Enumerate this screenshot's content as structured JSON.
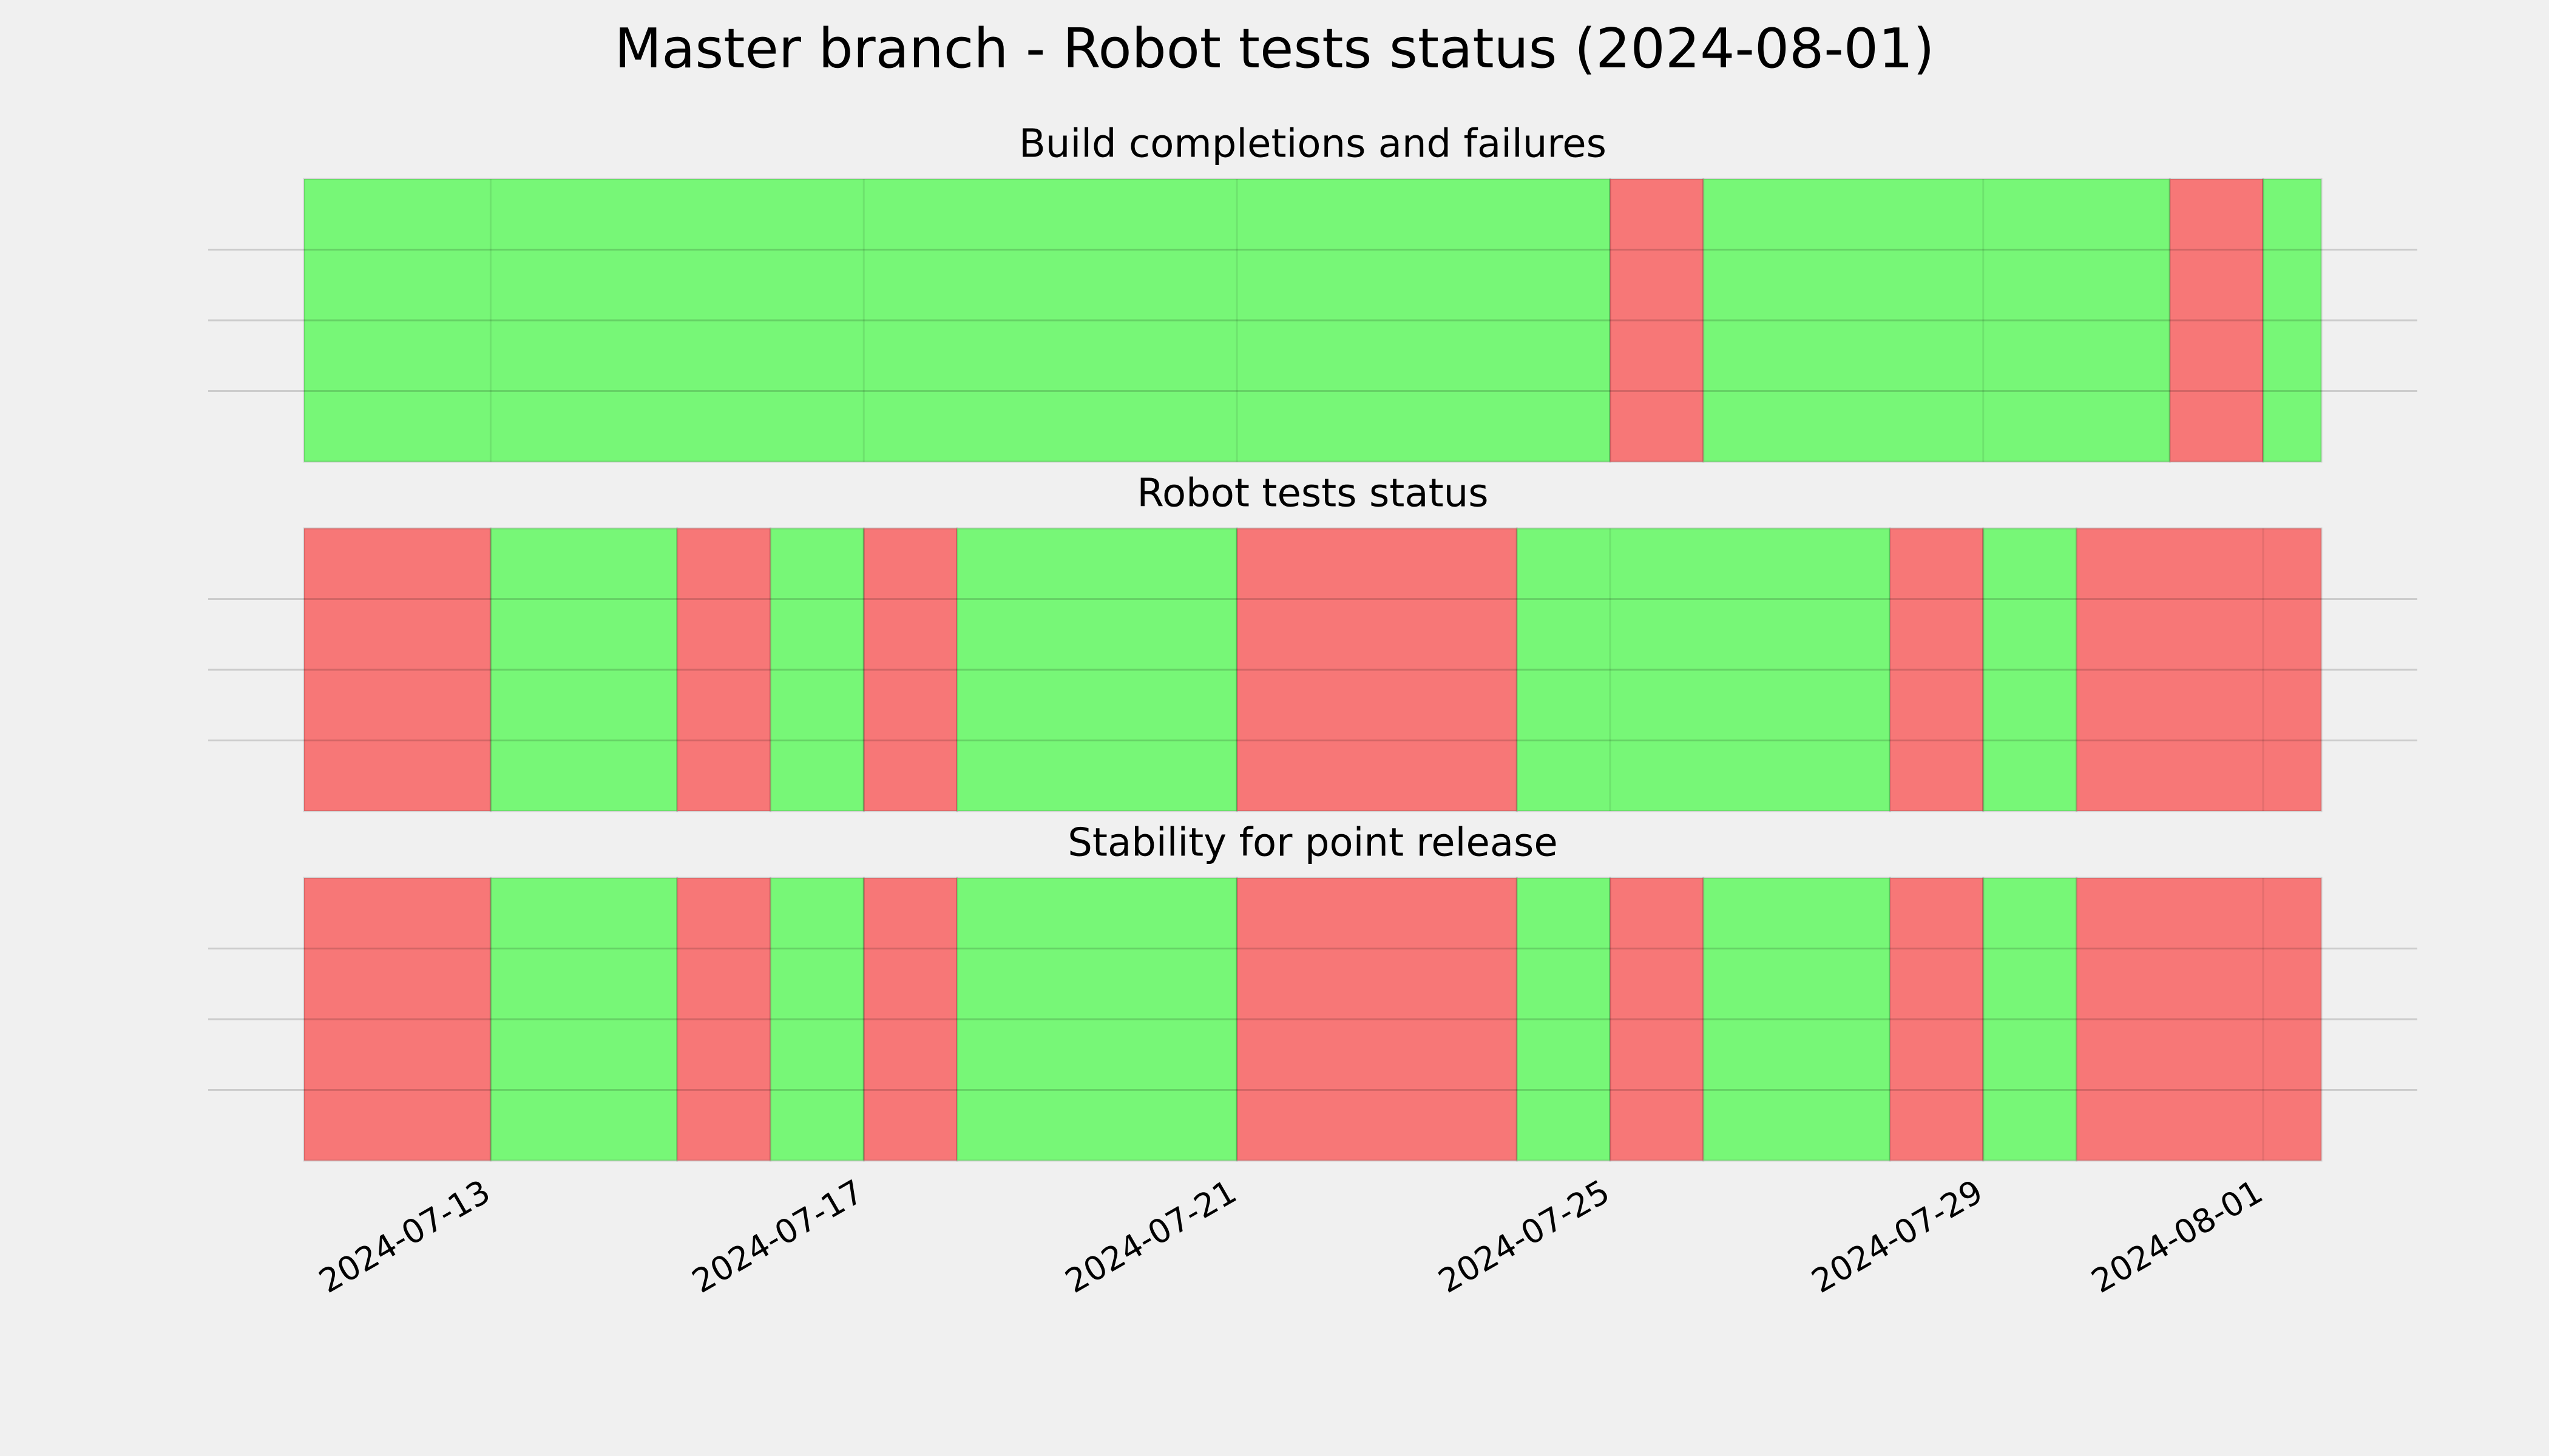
{
  "title": "Master branch - Robot tests status (2024-08-01)",
  "chart_data": [
    {
      "type": "status",
      "title": "Build completions and failures",
      "x": [
        "2024-07-11",
        "2024-07-25",
        "2024-07-26",
        "2024-07-31",
        "2024-08-01"
      ],
      "values": [
        1,
        0,
        1,
        0,
        1
      ],
      "colors": [
        "#f77777",
        "#77f777"
      ],
      "xlim": [
        "2024-07-11",
        "2024-08-01T15:00"
      ],
      "xticks": [
        "2024-07-13",
        "2024-07-17",
        "2024-07-21",
        "2024-07-25",
        "2024-07-29",
        "2024-08-01"
      ],
      "ylim": [
        0,
        1
      ],
      "yticks": [
        0.25,
        0.5,
        0.75
      ],
      "grid": true
    },
    {
      "type": "status",
      "title": "Robot tests status",
      "x": [
        "2024-07-11",
        "2024-07-13",
        "2024-07-15",
        "2024-07-16",
        "2024-07-17",
        "2024-07-18",
        "2024-07-21",
        "2024-07-24",
        "2024-07-28",
        "2024-07-29",
        "2024-07-30"
      ],
      "values": [
        0,
        1,
        0,
        1,
        0,
        1,
        0,
        1,
        0,
        1,
        0
      ],
      "colors": [
        "#f77777",
        "#77f777"
      ],
      "xlim": [
        "2024-07-11",
        "2024-08-01T15:00"
      ],
      "xticks": [
        "2024-07-13",
        "2024-07-17",
        "2024-07-21",
        "2024-07-25",
        "2024-07-29",
        "2024-08-01"
      ],
      "ylim": [
        0,
        1
      ],
      "yticks": [
        0.25,
        0.5,
        0.75
      ],
      "grid": true
    },
    {
      "type": "status",
      "title": "Stability for point release",
      "x": [
        "2024-07-11",
        "2024-07-13",
        "2024-07-15",
        "2024-07-16",
        "2024-07-17",
        "2024-07-18",
        "2024-07-21",
        "2024-07-24",
        "2024-07-25",
        "2024-07-26",
        "2024-07-28",
        "2024-07-29",
        "2024-07-30"
      ],
      "values": [
        0,
        1,
        0,
        1,
        0,
        1,
        0,
        1,
        0,
        1,
        0,
        1,
        0
      ],
      "colors": [
        "#f77777",
        "#77f777"
      ],
      "xlim": [
        "2024-07-11",
        "2024-08-01T15:00"
      ],
      "xticks": [
        "2024-07-13",
        "2024-07-17",
        "2024-07-21",
        "2024-07-25",
        "2024-07-29",
        "2024-08-01"
      ],
      "ylim": [
        0,
        1
      ],
      "yticks": [
        0.25,
        0.5,
        0.75
      ],
      "grid": true,
      "show_xtick_labels": true
    }
  ]
}
